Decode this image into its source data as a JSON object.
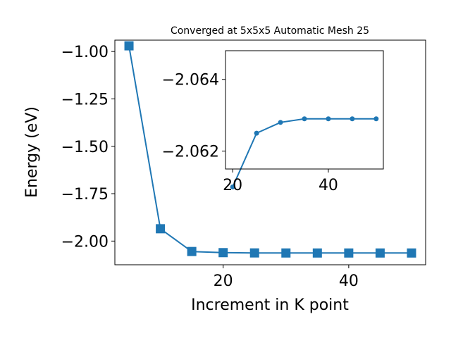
{
  "chart_data": [
    {
      "type": "line",
      "title": "Converged at 5x5x5 Automatic Mesh 25",
      "xlabel": "Increment in K point",
      "ylabel": "Energy (eV)",
      "xlim": [
        2.75,
        52.25
      ],
      "ylim": [
        -2.125,
        -0.94
      ],
      "xticks": [
        20,
        40
      ],
      "yticks": [
        -1.0,
        -1.25,
        -1.5,
        -1.75,
        -2.0
      ],
      "xtick_labels": [
        "20",
        "40"
      ],
      "ytick_labels": [
        "−1.00",
        "−1.25",
        "−1.50",
        "−1.75",
        "−2.00"
      ],
      "marker": "square",
      "color": "#1f77b4",
      "series": [
        {
          "x": [
            5,
            10,
            15,
            20,
            25,
            30,
            35,
            40,
            45,
            50
          ],
          "y": [
            -0.97,
            -1.935,
            -2.055,
            -2.061,
            -2.0625,
            -2.0628,
            -2.0629,
            -2.0629,
            -2.0629,
            -2.0629
          ]
        }
      ]
    },
    {
      "type": "line",
      "title": "",
      "xlabel": "",
      "ylabel": "",
      "xlim": [
        18.5,
        51.5
      ],
      "ylim": [
        -2.0615,
        -2.0648
      ],
      "xticks": [
        20,
        40
      ],
      "yticks": [
        -2.064,
        -2.062
      ],
      "xtick_labels": [
        "20",
        "40"
      ],
      "ytick_labels": [
        "−2.064",
        "−2.062"
      ],
      "marker": "circle",
      "color": "#1f77b4",
      "series": [
        {
          "x": [
            20,
            25,
            30,
            35,
            40,
            45,
            50
          ],
          "y": [
            -2.061,
            -2.0625,
            -2.0628,
            -2.0629,
            -2.0629,
            -2.0629,
            -2.0629
          ]
        }
      ]
    }
  ]
}
